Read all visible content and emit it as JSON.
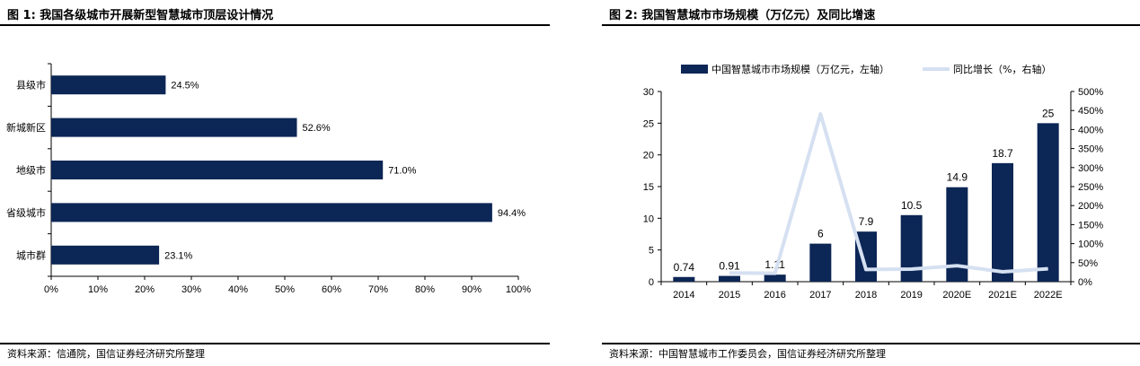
{
  "chart_data": [
    {
      "type": "bar",
      "orientation": "horizontal",
      "title": "图 1:  我国各级城市开展新型智慧城市顶层设计情况",
      "categories": [
        "县级市",
        "新城新区",
        "地级市",
        "省级城市",
        "城市群"
      ],
      "values": [
        24.5,
        52.6,
        71.0,
        94.4,
        23.1
      ],
      "value_labels": [
        "24.5%",
        "52.6%",
        "71.0%",
        "94.4%",
        "23.1%"
      ],
      "xlim": [
        0,
        100
      ],
      "x_ticks": [
        "0%",
        "10%",
        "20%",
        "30%",
        "40%",
        "50%",
        "60%",
        "70%",
        "80%",
        "90%",
        "100%"
      ],
      "source": "资料来源：信通院，国信证券经济研究所整理",
      "bar_color": "#0c2655"
    },
    {
      "type": "bar+line",
      "title": "图 2:  我国智慧城市市场规模（万亿元）及同比增速",
      "categories": [
        "2014",
        "2015",
        "2016",
        "2017",
        "2018",
        "2019",
        "2020E",
        "2021E",
        "2022E"
      ],
      "series": [
        {
          "name": "中国智慧城市市场规模（万亿元，左轴）",
          "type": "bar",
          "axis": "left",
          "values": [
            0.74,
            0.91,
            1.11,
            6,
            7.9,
            10.5,
            14.9,
            18.7,
            25
          ],
          "value_labels": [
            "0.74",
            "0.91",
            "1.11",
            "6",
            "7.9",
            "10.5",
            "14.9",
            "18.7",
            "25"
          ],
          "color": "#0c2655"
        },
        {
          "name": "同比增长（%，右轴）",
          "type": "line",
          "axis": "right",
          "values": [
            null,
            23,
            22,
            441,
            32,
            33,
            42,
            26,
            34
          ],
          "color": "#d5e0f1"
        }
      ],
      "ylim_left": [
        0,
        30
      ],
      "y_ticks_left": [
        "0",
        "5",
        "10",
        "15",
        "20",
        "25",
        "30"
      ],
      "ylim_right": [
        0,
        500
      ],
      "y_ticks_right": [
        "0%",
        "50%",
        "100%",
        "150%",
        "200%",
        "250%",
        "300%",
        "350%",
        "400%",
        "450%",
        "500%"
      ],
      "legend_position": "top",
      "source": "资料来源：中国智慧城市工作委员会，国信证券经济研究所整理"
    }
  ]
}
